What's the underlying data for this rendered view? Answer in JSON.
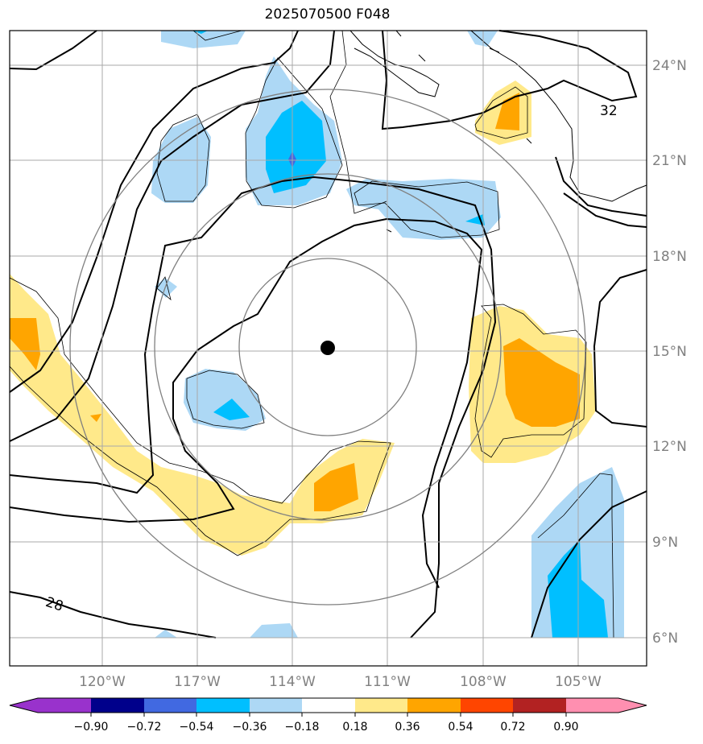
{
  "title": "2025070500 F048",
  "map": {
    "lat_labels": [
      "24°N",
      "21°N",
      "18°N",
      "15°N",
      "12°N",
      "9°N",
      "6°N"
    ],
    "lon_labels": [
      "120°W",
      "117°W",
      "114°W",
      "111°W",
      "108°W",
      "105°W"
    ],
    "contour_labels": [
      "32",
      "28"
    ],
    "storm_center": {
      "lat": 15.1,
      "lon": -112.9
    }
  },
  "colorbar": {
    "ticks": [
      "−0.90",
      "−0.72",
      "−0.54",
      "−0.36",
      "−0.18",
      "0.18",
      "0.36",
      "0.54",
      "0.72",
      "0.90"
    ],
    "colors": [
      "#9932cc",
      "#00008b",
      "#4169e1",
      "#00bfff",
      "#add8f5",
      "#ffffff",
      "#ffe98a",
      "#ffa500",
      "#ff4500",
      "#b22222",
      "#ff8fb0"
    ]
  }
}
